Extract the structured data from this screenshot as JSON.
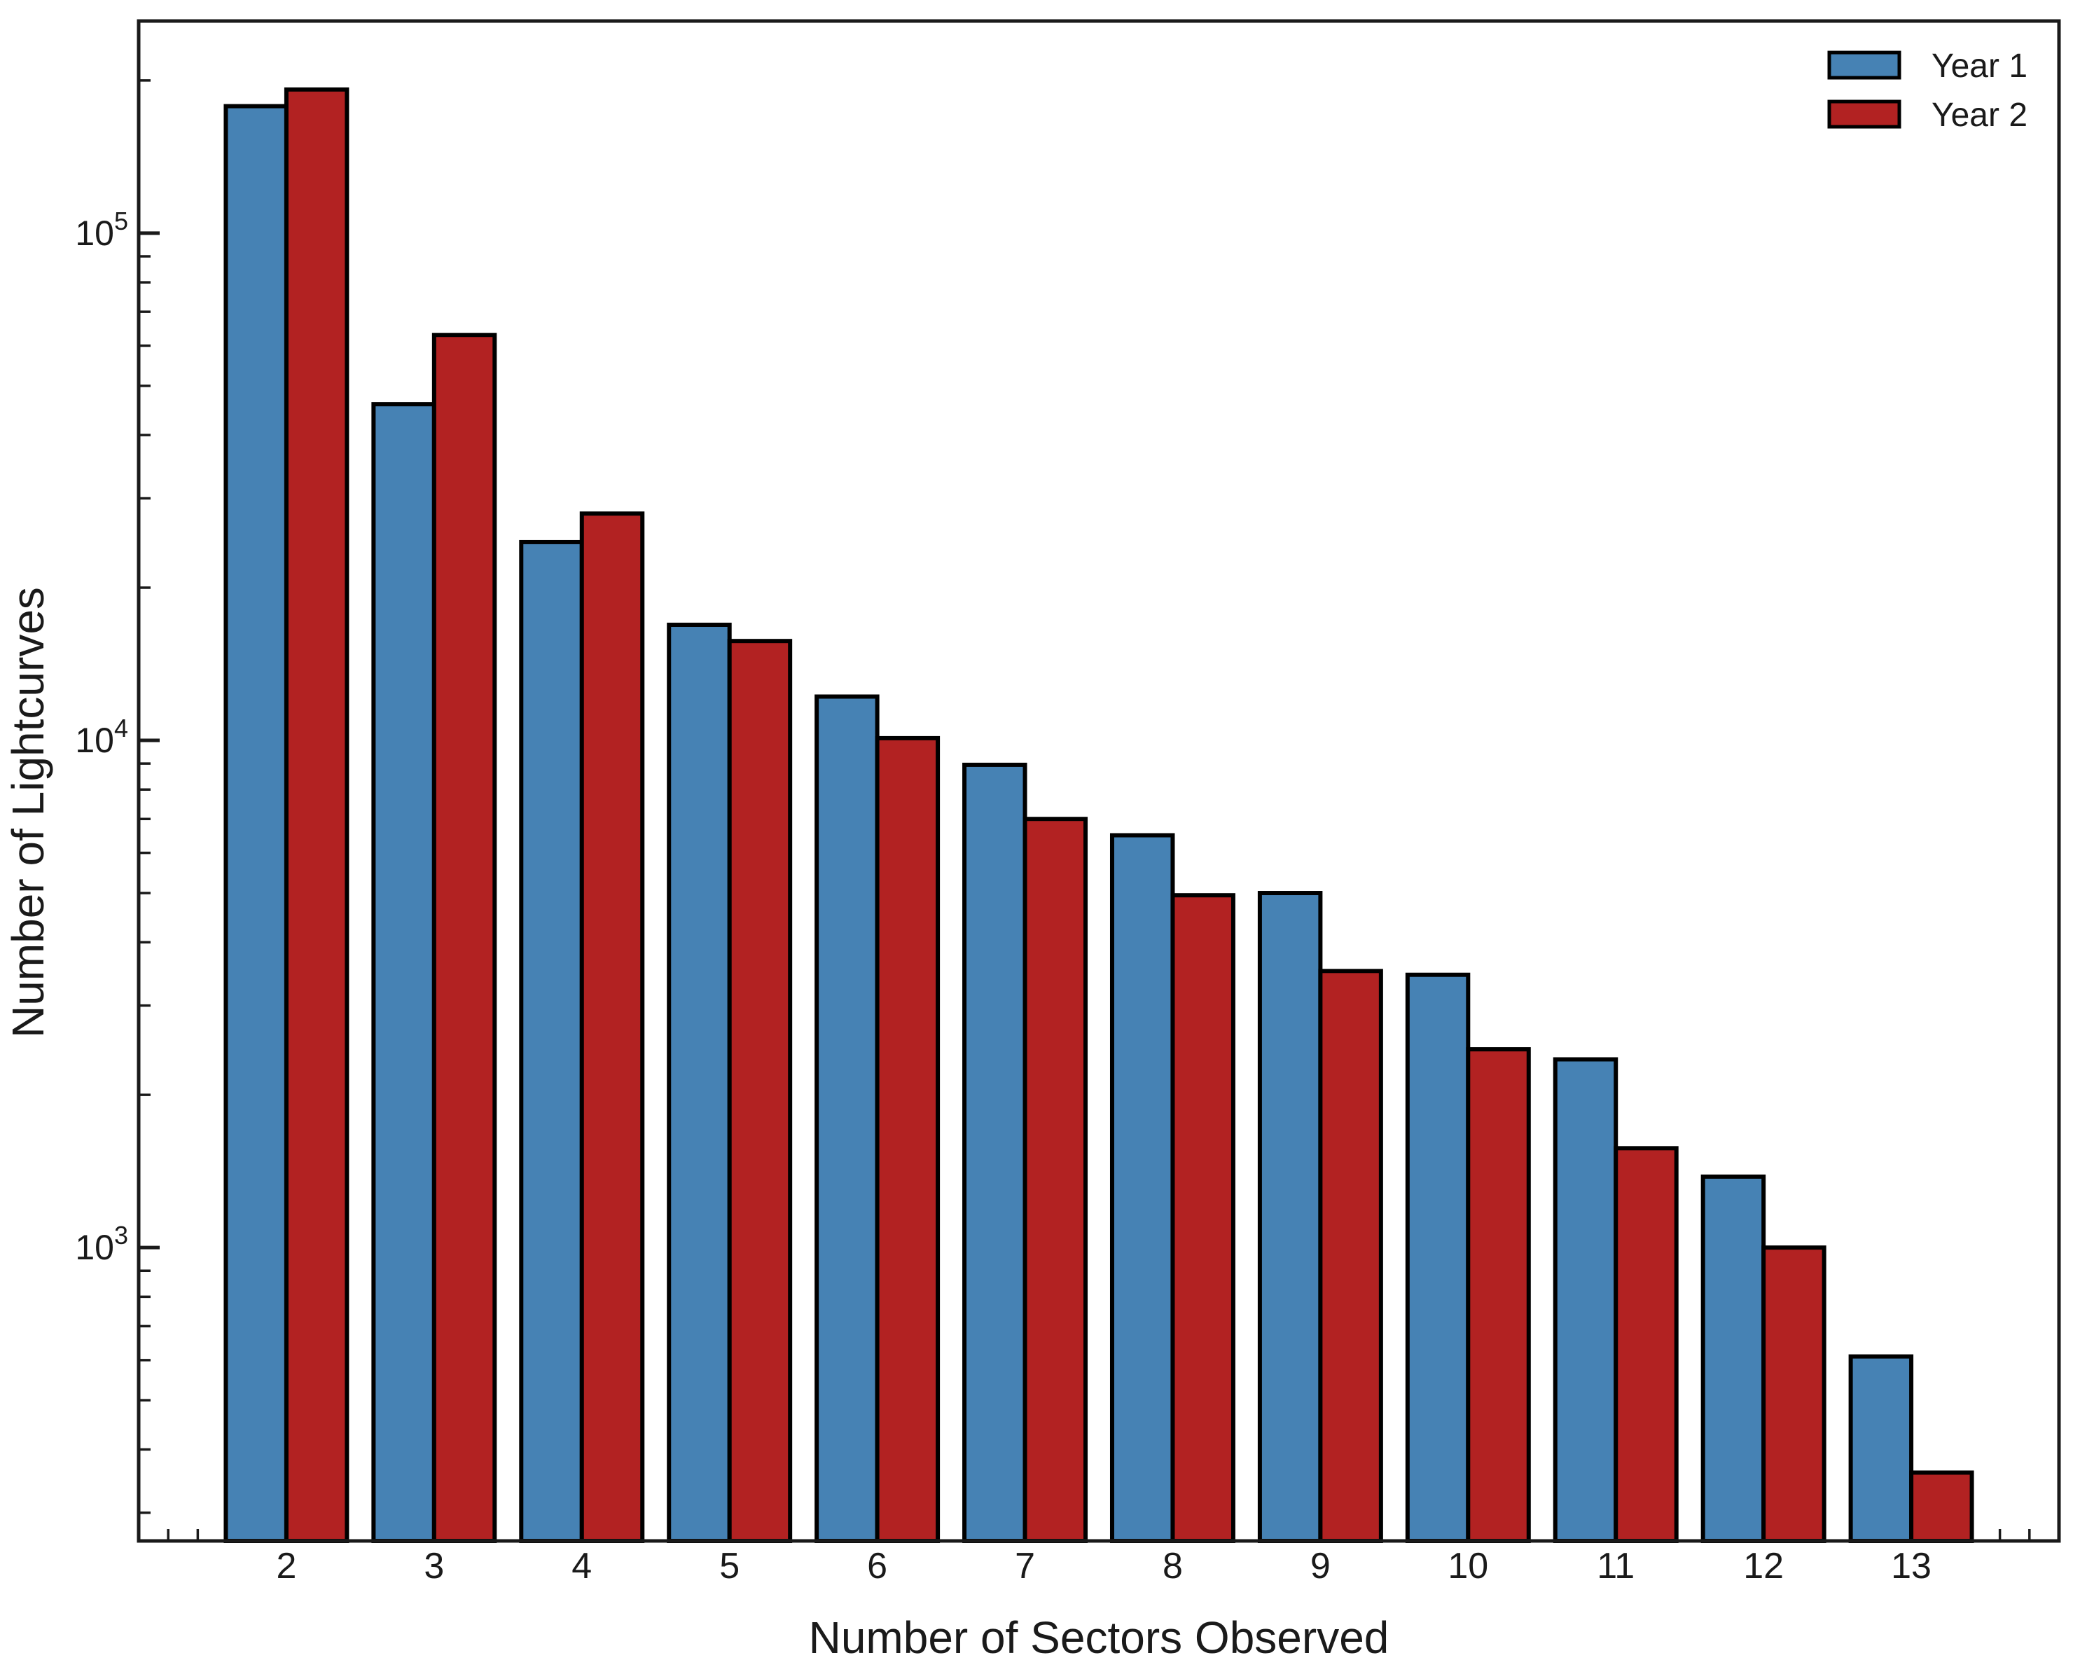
{
  "chart_data": {
    "type": "bar",
    "title": "",
    "xlabel": "Number of Sectors Observed",
    "ylabel": "Number of Lightcurves",
    "categories": [
      2,
      3,
      4,
      5,
      6,
      7,
      8,
      9,
      10,
      11,
      12,
      13
    ],
    "series": [
      {
        "name": "Year 1",
        "color": "#4682B4",
        "values": [
          178000,
          46000,
          24600,
          16900,
          12200,
          8950,
          6500,
          5000,
          3450,
          2350,
          1380,
          610
        ]
      },
      {
        "name": "Year 2",
        "color": "#B22222",
        "values": [
          192000,
          63000,
          28000,
          15700,
          10100,
          7000,
          4950,
          3510,
          2460,
          1570,
          1000,
          360
        ]
      }
    ],
    "y_scale": "log",
    "ylim": [
      264,
      262000
    ],
    "xlim": [
      1.0,
      14.0
    ],
    "y_major_tick_base": "10",
    "y_major_tick_exponents": [
      3,
      4,
      5
    ],
    "x_minor_tick_step": 0.2,
    "bar_edge_color": "#000000",
    "frame_color": "#1a1a1a",
    "background": "#ffffff",
    "grid": false,
    "legend_position": "upper right",
    "legend": {
      "items": [
        {
          "label": "Year 1"
        },
        {
          "label": "Year 2"
        }
      ]
    }
  }
}
